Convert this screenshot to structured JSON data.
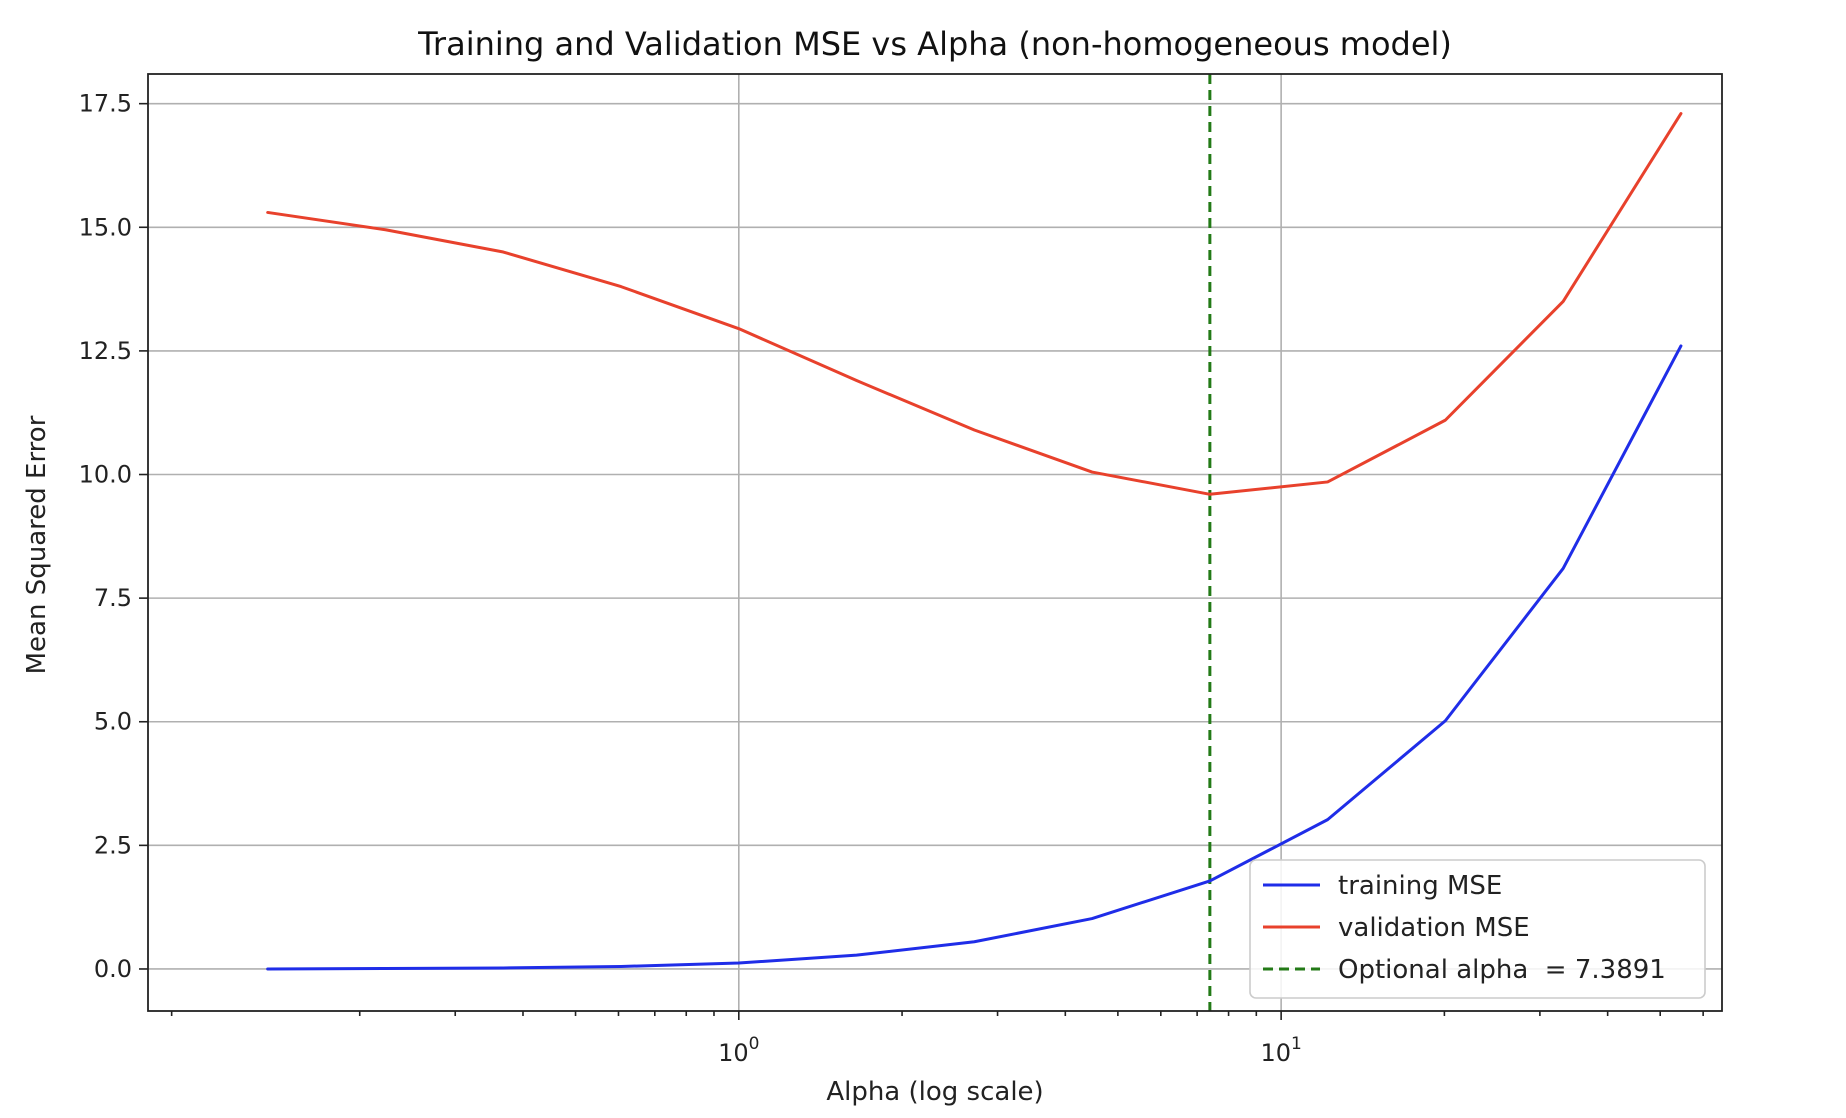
{
  "chart_data": {
    "type": "line",
    "title": "Training and Validation MSE vs Alpha (non-homogeneous model)",
    "xlabel": "Alpha (log scale)",
    "ylabel": "Mean Squared Error",
    "xscale": "log",
    "xlim": [
      0.0814,
      65
    ],
    "ylim": [
      -0.85,
      18.1
    ],
    "grid": true,
    "legend_position": "lower-right",
    "x_ticks": [
      {
        "value": 1,
        "label": "10",
        "exp": "0"
      },
      {
        "value": 10,
        "label": "10",
        "exp": "1"
      }
    ],
    "y_ticks": [
      {
        "value": 0,
        "label": "0.0"
      },
      {
        "value": 2.5,
        "label": "2.5"
      },
      {
        "value": 5,
        "label": "5.0"
      },
      {
        "value": 7.5,
        "label": "7.5"
      },
      {
        "value": 10,
        "label": "10.0"
      },
      {
        "value": 12.5,
        "label": "12.5"
      },
      {
        "value": 15,
        "label": "15.0"
      },
      {
        "value": 17.5,
        "label": "17.5"
      }
    ],
    "x": [
      0.1353,
      0.2231,
      0.3679,
      0.6065,
      1.0,
      1.6487,
      2.7183,
      4.4817,
      7.3891,
      12.1825,
      20.0855,
      33.1155,
      54.5982
    ],
    "series": [
      {
        "name": "training MSE",
        "color": "#1f2de8",
        "style": "solid",
        "values": [
          0.0,
          0.01,
          0.02,
          0.05,
          0.12,
          0.28,
          0.55,
          1.02,
          1.78,
          3.02,
          5.02,
          8.1,
          12.6
        ]
      },
      {
        "name": "validation MSE",
        "color": "#e8412c",
        "style": "solid",
        "values": [
          15.3,
          14.95,
          14.5,
          13.8,
          12.95,
          11.9,
          10.9,
          10.05,
          9.6,
          9.85,
          11.1,
          13.5,
          17.3
        ]
      }
    ],
    "vline": {
      "name": "Optional alpha  = 7.3891",
      "x": 7.3891,
      "color": "#237a17",
      "style": "dashed"
    }
  }
}
